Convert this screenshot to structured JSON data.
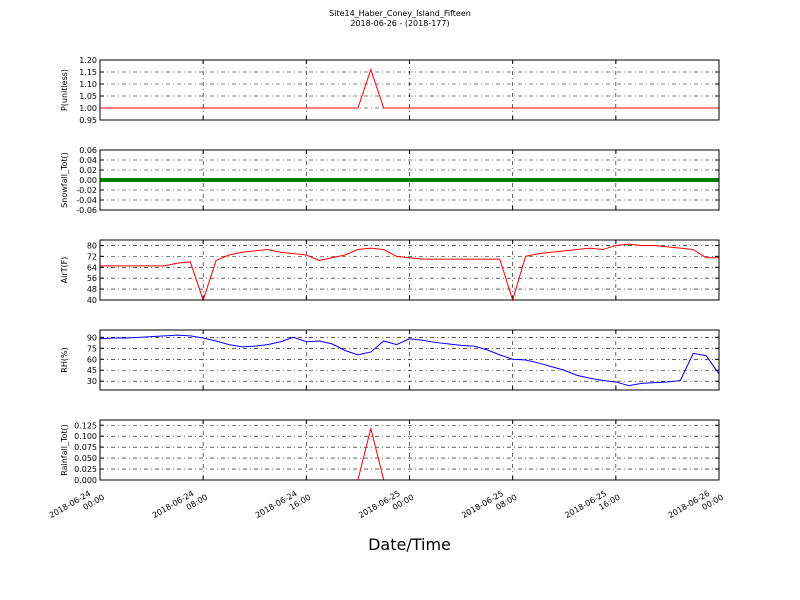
{
  "title": "Site14_Haber_Coney_Island_Fifteen",
  "subtitle": "2018-06-26 - (2018-177)",
  "chart_data": [
    {
      "type": "line",
      "ylabel": "P(unitless)",
      "color": "#ff0000",
      "xlim": [
        "2018-06-24 00:00",
        "2018-06-26 00:00"
      ],
      "xticks": [
        "2018-06-24 00:00",
        "2018-06-24 08:00",
        "2018-06-24 16:00",
        "2018-06-25 00:00",
        "2018-06-25 08:00",
        "2018-06-25 16:00",
        "2018-06-26 00:00"
      ],
      "ylim": [
        0.95,
        1.2
      ],
      "yticks": [
        0.95,
        {
          "value": 1,
          "label": "1.00"
        },
        1.05,
        {
          "value": 1.1,
          "label": "1.10"
        },
        1.15,
        {
          "value": 1.2,
          "label": "1.20"
        }
      ],
      "values": [
        1,
        1,
        1,
        1,
        1,
        1,
        1,
        1,
        1,
        1,
        1,
        1,
        1,
        1,
        1,
        1,
        1,
        1,
        1,
        1,
        1,
        1.16,
        1,
        1,
        1,
        1,
        1,
        1,
        1,
        1,
        1,
        1,
        1,
        1,
        1,
        1,
        1,
        1,
        1,
        1,
        1,
        1,
        1,
        1,
        1,
        1,
        1,
        1,
        1
      ]
    },
    {
      "type": "line",
      "ylabel": "Snowfall_Tot()",
      "color": "#008000",
      "xlim": [
        "2018-06-24 00:00",
        "2018-06-26 00:00"
      ],
      "xticks": [
        "2018-06-24 00:00",
        "2018-06-24 08:00",
        "2018-06-24 16:00",
        "2018-06-25 00:00",
        "2018-06-25 08:00",
        "2018-06-25 16:00",
        "2018-06-26 00:00"
      ],
      "ylim": [
        -0.06,
        0.06
      ],
      "yticks": [
        -0.06,
        -0.04,
        -0.02,
        {
          "value": 0,
          "label": "0.00"
        },
        0.02,
        0.04,
        0.06
      ],
      "values": [
        0,
        0,
        0,
        0,
        0,
        0,
        0,
        0,
        0,
        0,
        0,
        0,
        0,
        0,
        0,
        0,
        0,
        0,
        0,
        0,
        0,
        0,
        0,
        0,
        0,
        0,
        0,
        0,
        0,
        0,
        0,
        0,
        0,
        0,
        0,
        0,
        0,
        0,
        0,
        0,
        0,
        0,
        0,
        0,
        0,
        0,
        0,
        0,
        0
      ]
    },
    {
      "type": "line",
      "ylabel": "AirT(F)",
      "color": "#ff0000",
      "xlim": [
        "2018-06-24 00:00",
        "2018-06-26 00:00"
      ],
      "xticks": [
        "2018-06-24 00:00",
        "2018-06-24 08:00",
        "2018-06-24 16:00",
        "2018-06-25 00:00",
        "2018-06-25 08:00",
        "2018-06-25 16:00",
        "2018-06-26 00:00"
      ],
      "ylim": [
        40,
        84
      ],
      "yticks": [
        40,
        48,
        56,
        64,
        72,
        80
      ],
      "values": [
        65,
        65,
        65,
        65,
        65,
        65,
        67,
        68,
        40,
        69,
        73,
        75,
        76,
        77,
        75,
        74,
        73,
        69,
        71,
        73,
        77,
        78,
        77,
        72,
        71,
        70,
        70,
        70,
        70,
        70,
        70,
        70,
        40,
        72,
        74,
        75,
        76,
        77,
        78,
        77,
        80,
        81,
        80,
        80,
        79,
        78,
        77,
        71,
        71
      ]
    },
    {
      "type": "line",
      "ylabel": "RH(%)",
      "color": "#0000ff",
      "xlim": [
        "2018-06-24 00:00",
        "2018-06-26 00:00"
      ],
      "xticks": [
        "2018-06-24 00:00",
        "2018-06-24 08:00",
        "2018-06-24 16:00",
        "2018-06-25 00:00",
        "2018-06-25 08:00",
        "2018-06-25 16:00",
        "2018-06-26 00:00"
      ],
      "ylim": [
        18,
        100
      ],
      "yticks": [
        30,
        45,
        60,
        75,
        90
      ],
      "values": [
        88,
        89,
        89,
        90,
        91,
        92,
        93,
        92,
        89,
        85,
        80,
        77,
        78,
        80,
        84,
        90,
        84,
        85,
        81,
        72,
        66,
        70,
        85,
        80,
        88,
        86,
        83,
        81,
        79,
        78,
        73,
        66,
        60,
        59,
        55,
        50,
        45,
        38,
        34,
        31,
        29,
        24,
        27,
        28,
        29,
        31,
        68,
        65,
        40
      ]
    },
    {
      "type": "line",
      "ylabel": "Rainfall_Tot()",
      "color": "#ff0000",
      "xlabel": "Date/Time",
      "xlim": [
        "2018-06-24 00:00",
        "2018-06-26 00:00"
      ],
      "xticks": [
        "2018-06-24 00:00",
        "2018-06-24 08:00",
        "2018-06-24 16:00",
        "2018-06-25 00:00",
        "2018-06-25 08:00",
        "2018-06-25 16:00",
        "2018-06-26 00:00"
      ],
      "ylim": [
        0,
        0.137
      ],
      "yticks": [
        {
          "value": 0,
          "label": "0.000"
        },
        0.025,
        {
          "value": 0.05,
          "label": "0.050"
        },
        0.075,
        {
          "value": 0.1,
          "label": "0.100"
        },
        0.125
      ],
      "values": [
        0,
        0,
        0,
        0,
        0,
        0,
        0,
        0,
        0,
        0,
        0,
        0,
        0,
        0,
        0,
        0,
        0,
        0,
        0,
        0,
        0,
        0.118,
        0,
        0,
        0,
        0,
        0,
        0,
        0,
        0,
        0,
        0,
        0,
        0,
        0,
        0,
        0,
        0,
        0,
        0,
        0,
        0,
        0,
        0,
        0,
        0,
        0,
        0,
        0
      ]
    }
  ]
}
